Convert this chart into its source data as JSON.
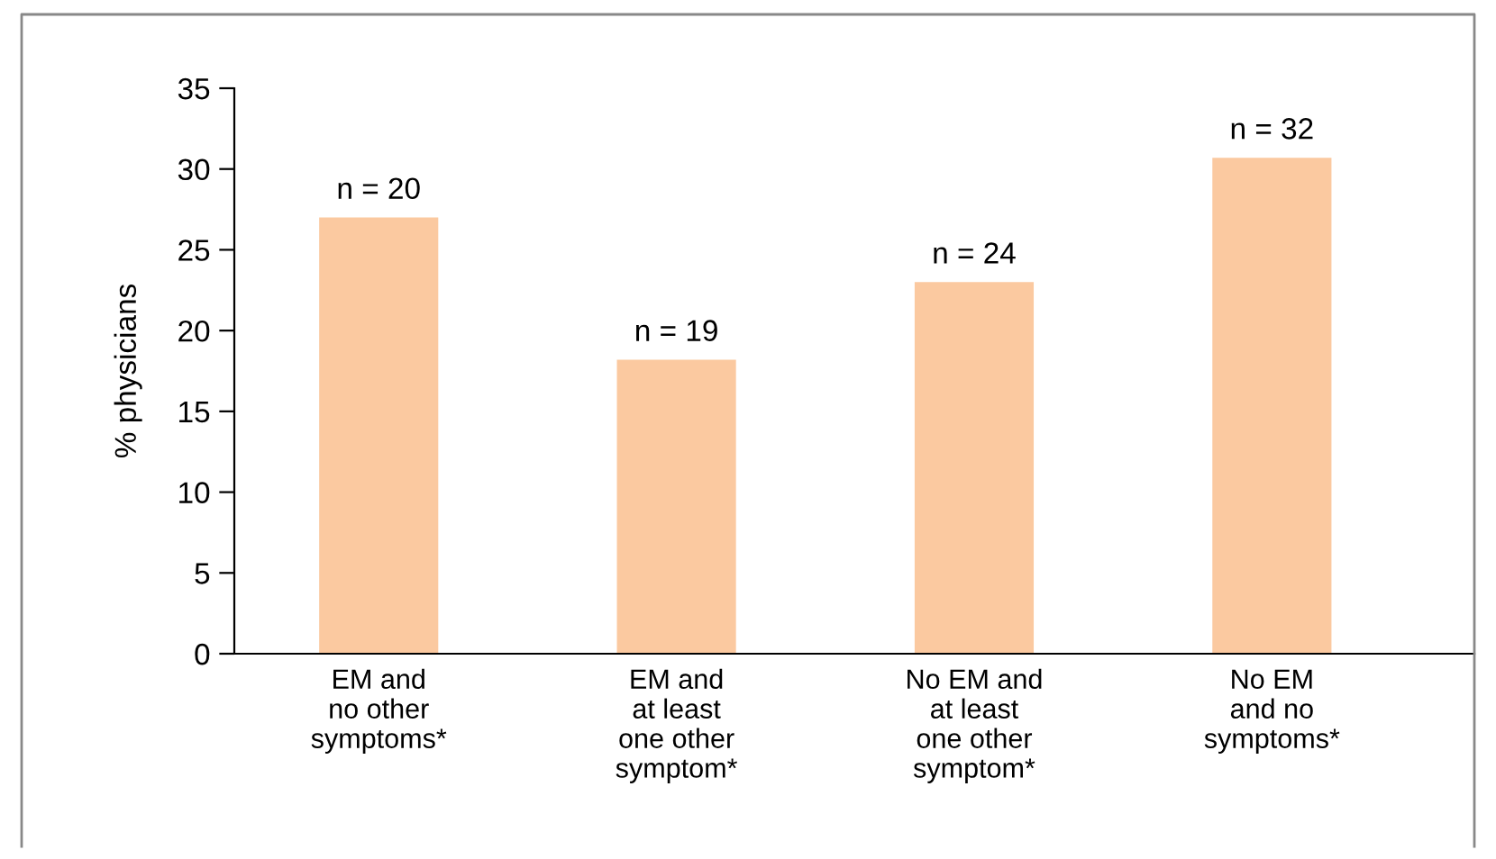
{
  "chart_data": {
    "type": "bar",
    "ylabel": "% physicians",
    "categories": [
      "EM and\nno other\nsymptoms*",
      "EM and\nat least\none other\nsymptom*",
      "No EM and\nat least\none other\nsymptom*",
      "No EM\nand no\nsymptoms*"
    ],
    "values": [
      27.0,
      18.2,
      23.0,
      30.7
    ],
    "color": "#fbc9a0",
    "ylim": [
      0,
      35
    ],
    "yticks": [
      0,
      5,
      10,
      15,
      20,
      25,
      30,
      35
    ],
    "grid": false,
    "legend": false,
    "annotations": [
      {
        "text": "n = 20",
        "x": "EM and\nno other\nsymptoms*",
        "y": 27.0
      },
      {
        "text": "n = 19",
        "x": "EM and\nat least\none other\nsymptom*",
        "y": 18.2
      },
      {
        "text": "n = 24",
        "x": "No EM and\nat least\none other\nsymptom*",
        "y": 23.0
      },
      {
        "text": "n = 32",
        "x": "No EM\nand no\nsymptoms*",
        "y": 30.7
      }
    ]
  }
}
